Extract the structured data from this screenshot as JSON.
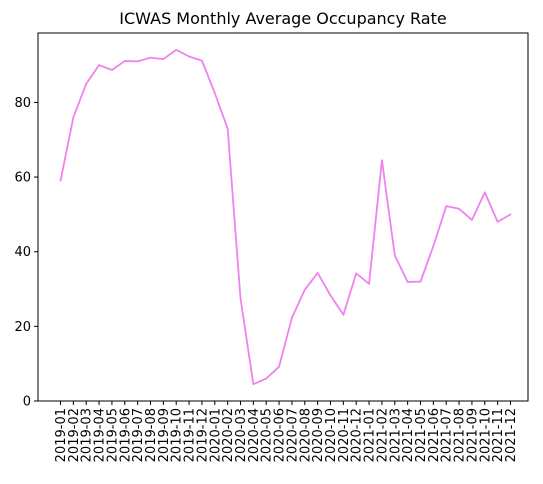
{
  "chart_data": {
    "type": "line",
    "title": "ICWAS Monthly Average Occupancy Rate",
    "xlabel": "",
    "ylabel": "",
    "x": [
      "2019-01",
      "2019-02",
      "2019-03",
      "2019-04",
      "2019-05",
      "2019-06",
      "2019-07",
      "2019-08",
      "2019-09",
      "2019-10",
      "2019-11",
      "2019-12",
      "2020-01",
      "2020-02",
      "2020-03",
      "2020-04",
      "2020-05",
      "2020-06",
      "2020-07",
      "2020-08",
      "2020-09",
      "2020-10",
      "2020-11",
      "2020-12",
      "2021-01",
      "2021-02",
      "2021-03",
      "2021-04",
      "2021-05",
      "2021-06",
      "2021-07",
      "2021-08",
      "2021-09",
      "2021-10",
      "2021-11",
      "2021-12"
    ],
    "series": [
      {
        "values": [
          59,
          76,
          85,
          90,
          88.7,
          91.1,
          91,
          92,
          91.6,
          94.1,
          92.3,
          91.2,
          82.5,
          73,
          27.5,
          4.5,
          6,
          9.2,
          22.3,
          29.8,
          34.3,
          28.3,
          23.1,
          34.2,
          31.4,
          64.5,
          39,
          31.9,
          32,
          41.5,
          52.2,
          51.5,
          48.5,
          55.9,
          48,
          50
        ],
        "color": "#ee82ee"
      }
    ],
    "yticks": [
      0,
      20,
      40,
      60,
      80
    ],
    "ylim": [
      0,
      98.6
    ],
    "grid": false,
    "legend": "none"
  }
}
